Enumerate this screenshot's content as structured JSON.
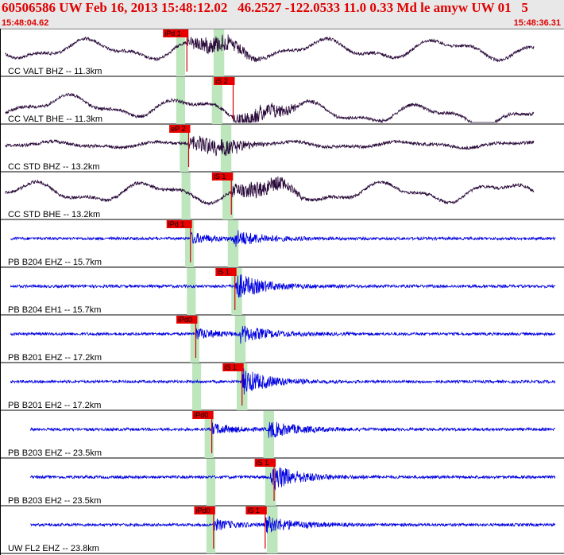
{
  "header": {
    "title": "60506586 UW Feb 16, 2013 15:48:12.02   46.2527 -122.0533 11.0 0.33 Md le amyw UW 01   5",
    "time_start": "15:48:04.62",
    "time_end": "15:48:36.31"
  },
  "colors": {
    "header_text": "#e00000",
    "header_bg": "#e8e8e8",
    "trace_dark": "#2a0a3a",
    "trace_blue": "#0000e0",
    "pick_box": "#e80000",
    "pick_line": "#d00000",
    "window_band": "#bde6bd"
  },
  "chart_data": {
    "type": "line",
    "title": "60506586 UW Feb 16, 2013 15:48:12.02   46.2527 -122.0533 11.0 0.33 Md le amyw UW 01   5",
    "xlabel": "",
    "ylabel": "",
    "x_range": [
      "15:48:04.62",
      "15:48:36.31"
    ],
    "series": [
      {
        "name": "CC VALT BHZ -- 11.3km",
        "color": "#2a0a3a",
        "picks": [
          {
            "label": "iPd 1",
            "x": 10.5
          }
        ],
        "windows": [
          [
            9.9,
            10.4
          ],
          [
            12.0,
            12.6
          ]
        ]
      },
      {
        "name": "CC VALT BHE -- 11.3km",
        "color": "#2a0a3a",
        "picks": [
          {
            "label": "iS 2",
            "x": 13.1
          }
        ],
        "windows": [
          [
            9.9,
            10.4
          ],
          [
            11.9,
            12.5
          ]
        ]
      },
      {
        "name": "CC STD BHZ -- 13.2km",
        "color": "#2a0a3a",
        "picks": [
          {
            "label": "eP 2",
            "x": 10.6
          }
        ],
        "windows": [
          [
            10.1,
            10.6
          ],
          [
            12.4,
            13.0
          ]
        ]
      },
      {
        "name": "CC STD BHE -- 13.2km",
        "color": "#2a0a3a",
        "picks": [
          {
            "label": "iS 1",
            "x": 13.0
          }
        ],
        "windows": [
          [
            10.2,
            10.7
          ],
          [
            12.5,
            13.1
          ]
        ]
      },
      {
        "name": "PB B204 EHZ -- 15.7km",
        "color": "#0000e0",
        "picks": [
          {
            "label": "iPd 1",
            "x": 10.7
          }
        ],
        "windows": [
          [
            10.4,
            10.9
          ],
          [
            12.8,
            13.4
          ]
        ]
      },
      {
        "name": "PB B204 EH1 -- 15.7km",
        "color": "#0000e0",
        "picks": [
          {
            "label": "iS 1",
            "x": 13.2
          }
        ],
        "windows": [
          [
            10.5,
            11.0
          ],
          [
            13.0,
            13.6
          ]
        ]
      },
      {
        "name": "PB B201 EHZ -- 17.2km",
        "color": "#0000e0",
        "picks": [
          {
            "label": "iPd0",
            "x": 11.0
          }
        ],
        "windows": [
          [
            10.7,
            11.2
          ],
          [
            13.2,
            13.8
          ]
        ]
      },
      {
        "name": "PB B201 EH2 -- 17.2km",
        "color": "#0000e0",
        "picks": [
          {
            "label": "iS 1",
            "x": 13.6
          }
        ],
        "windows": [
          [
            10.8,
            11.3
          ],
          [
            13.3,
            13.9
          ]
        ]
      },
      {
        "name": "PB B203 EHZ -- 23.5km",
        "color": "#0000e0",
        "picks": [
          {
            "label": "iPd0",
            "x": 11.9
          }
        ],
        "windows": [
          [
            11.5,
            12.0
          ],
          [
            14.8,
            15.4
          ]
        ]
      },
      {
        "name": "PB B203 EH2 -- 23.5km",
        "color": "#0000e0",
        "picks": [
          {
            "label": "iS 1",
            "x": 15.4
          }
        ],
        "windows": [
          [
            11.6,
            12.1
          ],
          [
            14.9,
            15.5
          ]
        ]
      },
      {
        "name": "UW FL2 EHZ -- 23.8km",
        "color": "#0000e0",
        "picks": [
          {
            "label": "iPd0",
            "x": 12.0
          },
          {
            "label": "iS 1",
            "x": 14.9
          }
        ],
        "windows": [
          [
            11.6,
            12.1
          ],
          [
            15.0,
            15.6
          ]
        ]
      }
    ]
  }
}
